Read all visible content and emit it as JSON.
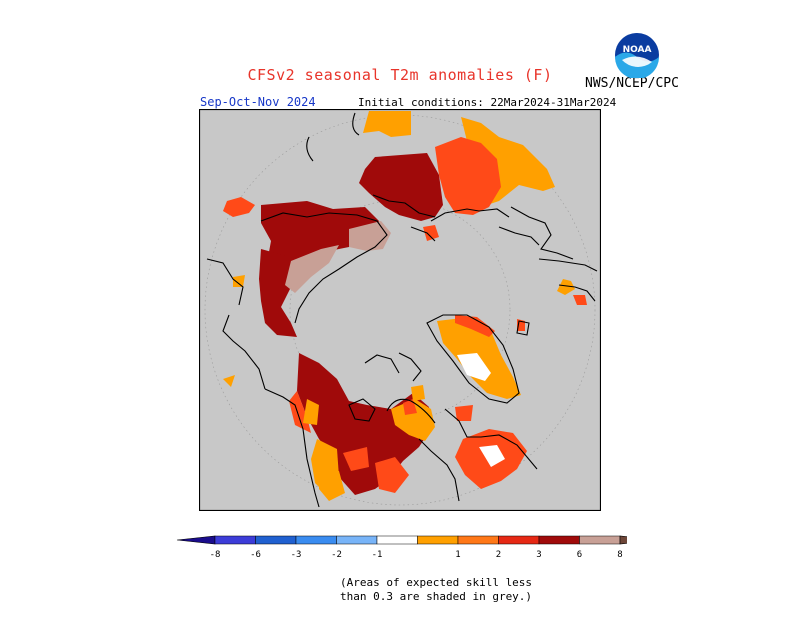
{
  "header": {
    "title": "CFSv2 seasonal T2m anomalies (F)",
    "agency": "NWS/NCEP/CPC",
    "season": "Sep-Oct-Nov 2024",
    "initial_conditions": "Initial conditions: 22Mar2024-31Mar2024",
    "logo_text": "NOAA"
  },
  "legend": {
    "colors": [
      "#1a0c8c",
      "#3c3cd8",
      "#2060d0",
      "#3a8cf0",
      "#78b4f8",
      "#ffffff",
      "#ffa000",
      "#ff7818",
      "#e62814",
      "#a00a0a",
      "#c8a096",
      "#6e4638"
    ],
    "labels": [
      "-8",
      "-6",
      "-3",
      "-2",
      "-1",
      "1",
      "2",
      "3",
      "6",
      "8"
    ]
  },
  "note": {
    "line1": "(Areas of expected skill less",
    "line2": "than 0.3 are shaded in grey.)"
  },
  "colors": {
    "grey": "#c8c8c8",
    "orange": "#ffa000",
    "red_orange": "#ff4a18",
    "dark_red": "#a00a0a",
    "pink": "#c8a096",
    "brown": "#6e4638",
    "title_red": "#e8342a",
    "season_blue": "#1838c8"
  }
}
